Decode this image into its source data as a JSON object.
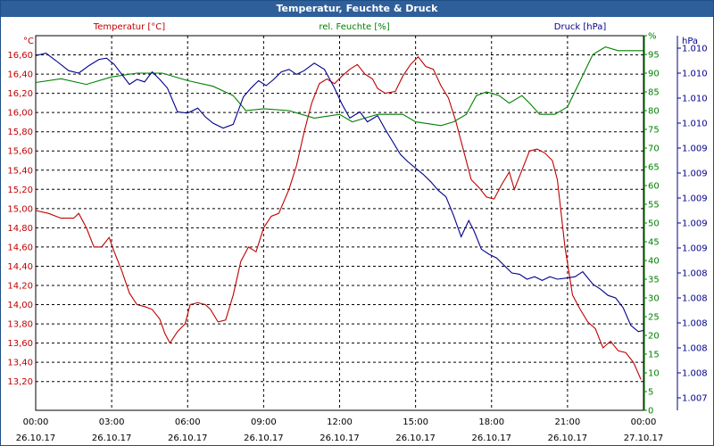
{
  "window": {
    "title": "Temperatur, Feuchte & Druck"
  },
  "chart_data": {
    "type": "line",
    "title": "Temperatur, Feuchte & Druck",
    "grid": true,
    "x": {
      "ticks": [
        "00:00",
        "03:00",
        "06:00",
        "09:00",
        "12:00",
        "15:00",
        "18:00",
        "21:00",
        "00:00"
      ],
      "dates": [
        "26.10.17",
        "26.10.17",
        "26.10.17",
        "26.10.17",
        "26.10.17",
        "26.10.17",
        "26.10.17",
        "26.10.17",
        "27.10.17"
      ],
      "range_hours": [
        0,
        24
      ]
    },
    "axes": {
      "temperature": {
        "label": "Temperatur [°C]",
        "unit": "°C",
        "range": [
          12.9,
          16.8
        ],
        "ticks": [
          "13,20",
          "13,40",
          "13,60",
          "13,80",
          "14,00",
          "14,20",
          "14,40",
          "14,60",
          "14,80",
          "15,00",
          "15,20",
          "15,40",
          "15,60",
          "15,80",
          "16,00",
          "16,20",
          "16,40",
          "16,60"
        ],
        "color": "#c00000"
      },
      "humidity": {
        "label": "rel. Feuchte [%]",
        "unit": "%",
        "range": [
          0,
          100
        ],
        "ticks": [
          "0",
          "5",
          "10",
          "15",
          "20",
          "25",
          "30",
          "35",
          "40",
          "45",
          "50",
          "55",
          "60",
          "65",
          "70",
          "75",
          "80",
          "85",
          "90",
          "95",
          "%"
        ],
        "color": "#008000"
      },
      "pressure": {
        "label": "hPa",
        "unit": "hPa",
        "range": [
          0,
          15
        ],
        "ticks": [
          "1.007",
          "1.008",
          "1.008",
          "1.008",
          "1.008",
          "1.008",
          "1.009",
          "1.009",
          "1.009",
          "1.009",
          "1.009",
          "1.010",
          "1.010",
          "1.010",
          "1.010"
        ],
        "color": "#00008b"
      }
    },
    "series": [
      {
        "name": "Temperatur [°C]",
        "color": "#c00000",
        "points": [
          [
            0,
            14.98
          ],
          [
            0.5,
            14.95
          ],
          [
            1,
            14.9
          ],
          [
            1.5,
            14.9
          ],
          [
            1.7,
            14.95
          ],
          [
            2,
            14.8
          ],
          [
            2.3,
            14.6
          ],
          [
            2.6,
            14.6
          ],
          [
            2.9,
            14.7
          ],
          [
            3.1,
            14.55
          ],
          [
            3.4,
            14.35
          ],
          [
            3.7,
            14.12
          ],
          [
            4,
            14
          ],
          [
            4.3,
            13.98
          ],
          [
            4.6,
            13.95
          ],
          [
            4.9,
            13.85
          ],
          [
            5.1,
            13.7
          ],
          [
            5.3,
            13.6
          ],
          [
            5.6,
            13.72
          ],
          [
            5.9,
            13.8
          ],
          [
            6.1,
            14.0
          ],
          [
            6.4,
            14.02
          ],
          [
            6.7,
            14.0
          ],
          [
            6.9,
            13.95
          ],
          [
            7.2,
            13.82
          ],
          [
            7.5,
            13.84
          ],
          [
            7.8,
            14.1
          ],
          [
            8.1,
            14.45
          ],
          [
            8.4,
            14.6
          ],
          [
            8.7,
            14.55
          ],
          [
            9,
            14.8
          ],
          [
            9.3,
            14.92
          ],
          [
            9.6,
            14.95
          ],
          [
            10,
            15.2
          ],
          [
            10.3,
            15.45
          ],
          [
            10.6,
            15.8
          ],
          [
            10.9,
            16.1
          ],
          [
            11.2,
            16.3
          ],
          [
            11.5,
            16.35
          ],
          [
            11.8,
            16.3
          ],
          [
            12.1,
            16.38
          ],
          [
            12.4,
            16.45
          ],
          [
            12.7,
            16.5
          ],
          [
            13,
            16.4
          ],
          [
            13.3,
            16.35
          ],
          [
            13.5,
            16.25
          ],
          [
            13.8,
            16.2
          ],
          [
            14.2,
            16.22
          ],
          [
            14.5,
            16.38
          ],
          [
            14.8,
            16.5
          ],
          [
            15.1,
            16.58
          ],
          [
            15.4,
            16.48
          ],
          [
            15.7,
            16.45
          ],
          [
            16,
            16.28
          ],
          [
            16.3,
            16.15
          ],
          [
            16.6,
            15.9
          ],
          [
            16.9,
            15.6
          ],
          [
            17.2,
            15.3
          ],
          [
            17.5,
            15.22
          ],
          [
            17.8,
            15.12
          ],
          [
            18.1,
            15.1
          ],
          [
            18.4,
            15.25
          ],
          [
            18.7,
            15.38
          ],
          [
            18.9,
            15.2
          ],
          [
            19.2,
            15.4
          ],
          [
            19.5,
            15.6
          ],
          [
            19.8,
            15.62
          ],
          [
            20.1,
            15.58
          ],
          [
            20.4,
            15.5
          ],
          [
            20.6,
            15.3
          ],
          [
            20.9,
            14.6
          ],
          [
            21.2,
            14.1
          ],
          [
            21.5,
            13.95
          ],
          [
            21.8,
            13.82
          ],
          [
            22.1,
            13.75
          ],
          [
            22.4,
            13.55
          ],
          [
            22.7,
            13.62
          ],
          [
            23,
            13.52
          ],
          [
            23.3,
            13.5
          ],
          [
            23.6,
            13.4
          ],
          [
            23.9,
            13.22
          ]
        ]
      },
      {
        "name": "rel. Feuchte [%]",
        "color": "#008000",
        "points": [
          [
            0,
            87.5
          ],
          [
            1,
            88.5
          ],
          [
            2,
            87
          ],
          [
            3,
            89
          ],
          [
            4,
            90
          ],
          [
            5,
            90
          ],
          [
            6,
            88
          ],
          [
            7,
            86.5
          ],
          [
            7.8,
            84
          ],
          [
            8.3,
            80
          ],
          [
            9,
            80.5
          ],
          [
            10,
            80
          ],
          [
            11,
            78
          ],
          [
            12,
            79
          ],
          [
            12.5,
            77
          ],
          [
            13,
            78
          ],
          [
            13.5,
            79
          ],
          [
            14.5,
            79
          ],
          [
            15,
            77
          ],
          [
            16,
            76
          ],
          [
            16.5,
            77
          ],
          [
            17,
            79
          ],
          [
            17.4,
            84
          ],
          [
            17.8,
            85
          ],
          [
            18.3,
            84
          ],
          [
            18.7,
            82
          ],
          [
            19.2,
            84
          ],
          [
            19.5,
            82
          ],
          [
            19.9,
            79
          ],
          [
            20.5,
            79
          ],
          [
            21,
            81
          ],
          [
            21.5,
            88
          ],
          [
            22,
            95
          ],
          [
            22.5,
            97
          ],
          [
            23,
            96
          ],
          [
            24,
            96
          ]
        ]
      },
      {
        "name": "Druck [hPa]",
        "color": "#00008b",
        "points": [
          [
            0,
            14.2
          ],
          [
            0.4,
            14.3
          ],
          [
            0.8,
            14.0
          ],
          [
            1.3,
            13.6
          ],
          [
            1.7,
            13.5
          ],
          [
            2.1,
            13.8
          ],
          [
            2.5,
            14.05
          ],
          [
            2.8,
            14.1
          ],
          [
            3.1,
            13.85
          ],
          [
            3.4,
            13.45
          ],
          [
            3.7,
            13.05
          ],
          [
            4,
            13.25
          ],
          [
            4.3,
            13.15
          ],
          [
            4.6,
            13.55
          ],
          [
            4.9,
            13.25
          ],
          [
            5.2,
            12.9
          ],
          [
            5.6,
            11.95
          ],
          [
            6,
            11.9
          ],
          [
            6.4,
            12.1
          ],
          [
            6.7,
            11.75
          ],
          [
            7,
            11.5
          ],
          [
            7.4,
            11.3
          ],
          [
            7.8,
            11.45
          ],
          [
            8.2,
            12.55
          ],
          [
            8.5,
            12.9
          ],
          [
            8.8,
            13.2
          ],
          [
            9.1,
            13.0
          ],
          [
            9.4,
            13.25
          ],
          [
            9.7,
            13.55
          ],
          [
            10,
            13.65
          ],
          [
            10.3,
            13.45
          ],
          [
            10.6,
            13.6
          ],
          [
            11,
            13.9
          ],
          [
            11.4,
            13.65
          ],
          [
            11.8,
            12.9
          ],
          [
            12.1,
            12.25
          ],
          [
            12.4,
            11.7
          ],
          [
            12.8,
            11.95
          ],
          [
            13.1,
            11.55
          ],
          [
            13.5,
            11.8
          ],
          [
            13.8,
            11.25
          ],
          [
            14.1,
            10.75
          ],
          [
            14.4,
            10.25
          ],
          [
            14.7,
            9.95
          ],
          [
            15,
            9.7
          ],
          [
            15.3,
            9.45
          ],
          [
            15.6,
            9.15
          ],
          [
            15.9,
            8.8
          ],
          [
            16.2,
            8.55
          ],
          [
            16.5,
            7.8
          ],
          [
            16.8,
            6.95
          ],
          [
            17.1,
            7.6
          ],
          [
            17.3,
            7.2
          ],
          [
            17.6,
            6.45
          ],
          [
            17.9,
            6.25
          ],
          [
            18.2,
            6.1
          ],
          [
            18.5,
            5.8
          ],
          [
            18.8,
            5.5
          ],
          [
            19.1,
            5.45
          ],
          [
            19.4,
            5.25
          ],
          [
            19.7,
            5.35
          ],
          [
            20,
            5.2
          ],
          [
            20.3,
            5.35
          ],
          [
            20.6,
            5.25
          ],
          [
            21,
            5.3
          ],
          [
            21.3,
            5.35
          ],
          [
            21.6,
            5.55
          ],
          [
            22,
            5.05
          ],
          [
            22.3,
            4.85
          ],
          [
            22.6,
            4.6
          ],
          [
            22.9,
            4.5
          ],
          [
            23.2,
            4.1
          ],
          [
            23.5,
            3.4
          ],
          [
            23.8,
            3.15
          ],
          [
            24,
            3.2
          ]
        ]
      }
    ]
  }
}
